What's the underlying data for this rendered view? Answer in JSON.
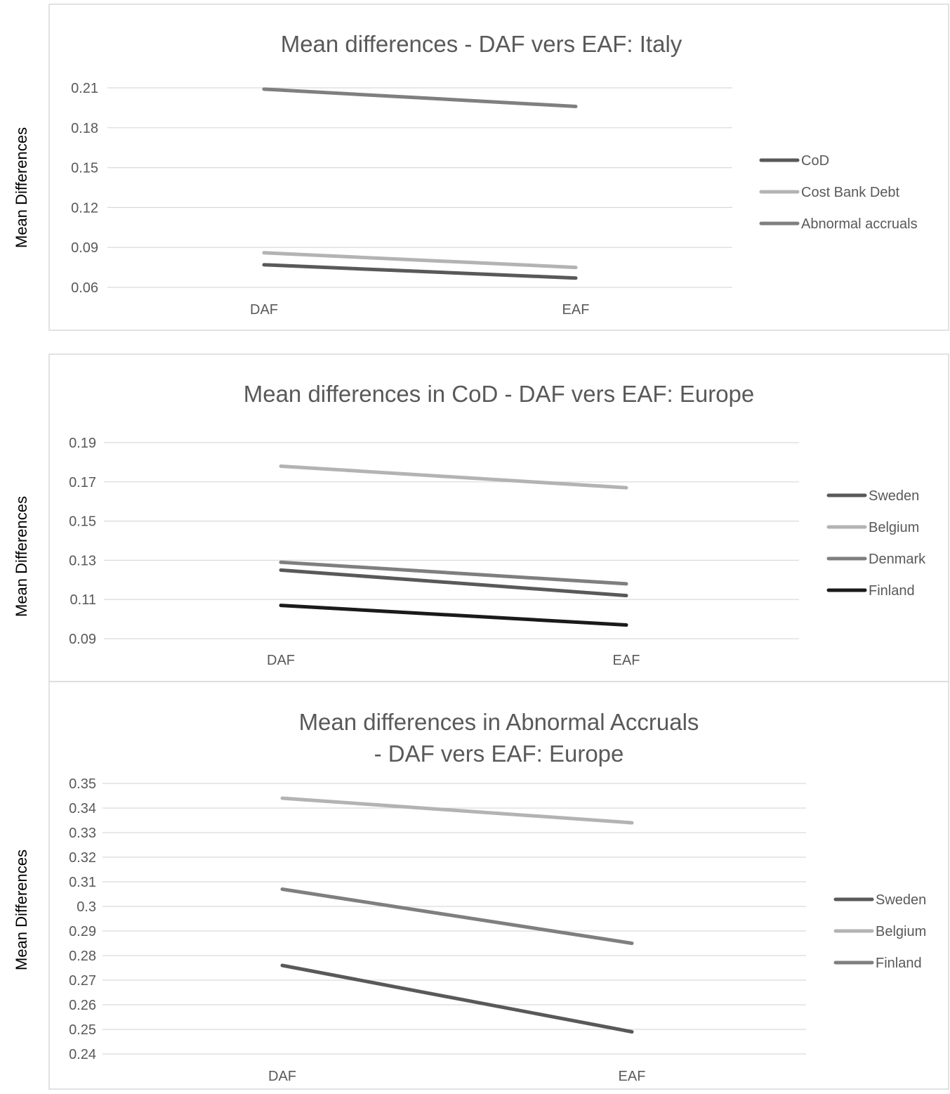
{
  "chart_data": [
    {
      "type": "line",
      "title": [
        "Mean differences - DAF vers EAF: Italy"
      ],
      "ylabel": "Mean Differences",
      "categories": [
        "DAF",
        "EAF"
      ],
      "yticks": [
        "0.06",
        "0.09",
        "0.12",
        "0.15",
        "0.18",
        "0.21"
      ],
      "ylim": [
        0.06,
        0.21
      ],
      "grid": true,
      "legend_position": "right",
      "series": [
        {
          "name": "CoD",
          "values": [
            0.077,
            0.067
          ],
          "color": "#595959"
        },
        {
          "name": "Cost Bank Debt",
          "values": [
            0.086,
            0.075
          ],
          "color": "#b3b3b3"
        },
        {
          "name": "Abnormal accruals",
          "values": [
            0.209,
            0.196
          ],
          "color": "#7f7f7f"
        }
      ]
    },
    {
      "type": "line",
      "title": [
        "Mean differences in CoD - DAF vers EAF: Europe"
      ],
      "ylabel": "Mean Differences",
      "categories": [
        "DAF",
        "EAF"
      ],
      "yticks": [
        "0.09",
        "0.11",
        "0.13",
        "0.15",
        "0.17",
        "0.19"
      ],
      "ylim": [
        0.09,
        0.19
      ],
      "grid": true,
      "legend_position": "right",
      "series": [
        {
          "name": "Sweden",
          "values": [
            0.125,
            0.112
          ],
          "color": "#595959"
        },
        {
          "name": "Belgium",
          "values": [
            0.178,
            0.167
          ],
          "color": "#b3b3b3"
        },
        {
          "name": "Denmark",
          "values": [
            0.129,
            0.118
          ],
          "color": "#7f7f7f"
        },
        {
          "name": "Finland",
          "values": [
            0.107,
            0.097
          ],
          "color": "#1a1a1a"
        }
      ]
    },
    {
      "type": "line",
      "title": [
        "Mean differences in Abnormal Accruals",
        "- DAF vers EAF: Europe"
      ],
      "ylabel": "Mean Differences",
      "categories": [
        "DAF",
        "EAF"
      ],
      "yticks": [
        "0.24",
        "0.25",
        "0.26",
        "0.27",
        "0.28",
        "0.29",
        "0.3",
        "0.31",
        "0.32",
        "0.33",
        "0.34",
        "0.35"
      ],
      "ylim": [
        0.24,
        0.35
      ],
      "grid": true,
      "legend_position": "right",
      "series": [
        {
          "name": "Sweden",
          "values": [
            0.276,
            0.249
          ],
          "color": "#595959"
        },
        {
          "name": "Belgium",
          "values": [
            0.344,
            0.334
          ],
          "color": "#b3b3b3"
        },
        {
          "name": "Finland",
          "values": [
            0.307,
            0.285
          ],
          "color": "#7f7f7f"
        }
      ]
    }
  ]
}
